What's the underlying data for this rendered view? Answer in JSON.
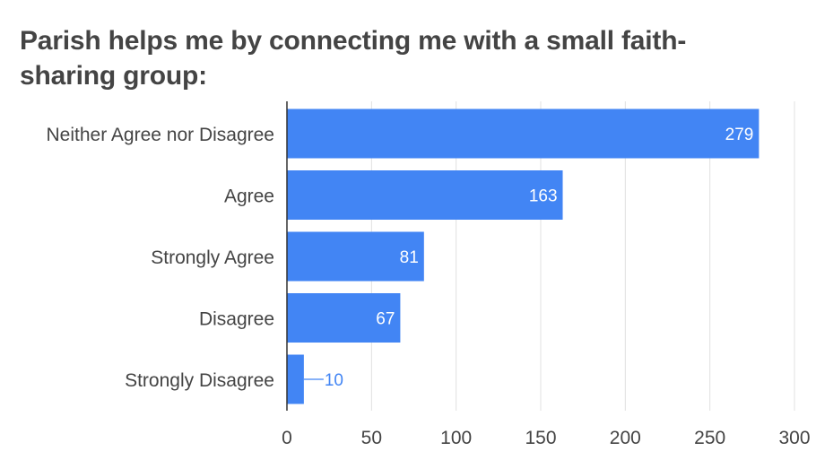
{
  "chart_data": {
    "type": "bar",
    "orientation": "horizontal",
    "title": "Parish helps me by connecting me with a small faith-sharing group:",
    "categories": [
      "Neither Agree nor Disagree",
      "Agree",
      "Strongly Agree",
      "Disagree",
      "Strongly Disagree"
    ],
    "values": [
      279,
      163,
      81,
      67,
      10
    ],
    "xlim": [
      0,
      300
    ],
    "xticks": [
      0,
      50,
      100,
      150,
      200,
      250,
      300
    ],
    "xlabel": "",
    "ylabel": "",
    "grid": true,
    "legend": "none",
    "colors": {
      "bar": "#4285f4",
      "label_inside": "#ffffff",
      "label_outside": "#4285f4",
      "gridline": "#e0e0e0",
      "axis": "#333333",
      "text": "#444444"
    }
  }
}
